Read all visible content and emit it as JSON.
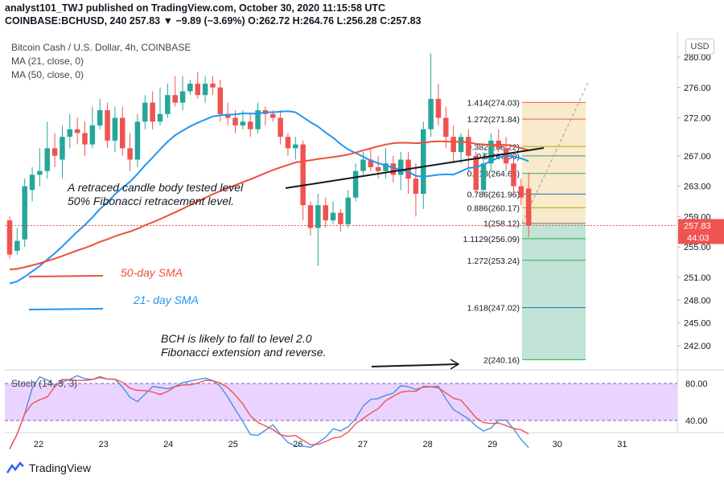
{
  "header": {
    "line1": "analyst101_TWJ published on TradingView.com, October 30, 2020 11:15:58 UTC",
    "line2": "COINBASE:BCHUSD, 240  257.83  ▼ −9.89 (−3.69%)  O:262.72  H:264.76  L:256.28  C:257.83"
  },
  "legend": {
    "title": "Bitcoin Cash / U.S. Dollar, 4h, COINBASE",
    "ma21": "MA (21, close, 0)",
    "ma50": "MA (50, close, 0)",
    "stoch": "Stoch (14, 3, 3)"
  },
  "currency_button": "USD",
  "annotations": {
    "retrace_1": "A retraced candle body tested level",
    "retrace_2": "50% Fibonacci retracement level.",
    "sma50": "50-day SMA",
    "sma21": "21- day SMA",
    "bch_1": "BCH is likely to fall to level 2.0",
    "bch_2": "Fibonacci extension and reverse."
  },
  "footer": {
    "brand": "TradingView"
  },
  "colors": {
    "up": "#26a69a",
    "down": "#ef5350",
    "ma21": "#2196f3",
    "ma50": "#ef4f3c",
    "stoch_k": "#4a90e2",
    "stoch_d": "#ef5350",
    "stoch_bg": "#e6ccff"
  },
  "chart_data": {
    "type": "candlestick",
    "x_ticks": [
      "22",
      "23",
      "24",
      "25",
      "26",
      "27",
      "28",
      "29",
      "30",
      "31"
    ],
    "y_ticks": [
      "280.00",
      "276.00",
      "272.00",
      "267.00",
      "263.00",
      "259.00",
      "255.00",
      "251.00",
      "248.00",
      "245.00",
      "242.00"
    ],
    "last_price": "257.83",
    "countdown": "44:03",
    "candles": [
      [
        258.5,
        254.0,
        259.0,
        253.5
      ],
      [
        254.5,
        255.8,
        257.5,
        254.0
      ],
      [
        256.0,
        263.0,
        264.0,
        255.0
      ],
      [
        262.5,
        264.5,
        265.5,
        261.0
      ],
      [
        264.5,
        265.0,
        268.0,
        263.0
      ],
      [
        265.0,
        268.0,
        271.5,
        264.0
      ],
      [
        268.0,
        267.0,
        270.0,
        265.5
      ],
      [
        266.5,
        269.5,
        271.0,
        264.0
      ],
      [
        269.5,
        270.5,
        272.5,
        268.0
      ],
      [
        270.5,
        270.0,
        272.0,
        268.5
      ],
      [
        270.0,
        268.5,
        271.5,
        267.0
      ],
      [
        268.5,
        271.0,
        273.5,
        268.0
      ],
      [
        271.0,
        273.0,
        274.5,
        270.5
      ],
      [
        273.0,
        269.0,
        274.0,
        268.0
      ],
      [
        269.0,
        272.0,
        273.5,
        267.5
      ],
      [
        272.0,
        268.0,
        273.5,
        267.0
      ],
      [
        268.0,
        266.5,
        270.0,
        265.0
      ],
      [
        266.5,
        271.5,
        272.5,
        265.5
      ],
      [
        271.5,
        274.0,
        275.0,
        270.5
      ],
      [
        274.0,
        271.5,
        275.5,
        270.5
      ],
      [
        271.5,
        272.5,
        276.0,
        271.0
      ],
      [
        272.5,
        275.0,
        276.5,
        272.0
      ],
      [
        275.0,
        274.0,
        277.5,
        273.5
      ],
      [
        274.0,
        275.5,
        277.5,
        273.0
      ],
      [
        275.5,
        276.5,
        277.0,
        275.0
      ],
      [
        276.5,
        275.0,
        278.0,
        274.5
      ],
      [
        275.0,
        276.5,
        277.5,
        274.0
      ],
      [
        276.5,
        276.0,
        277.5,
        275.0
      ],
      [
        276.0,
        272.5,
        277.0,
        271.5
      ],
      [
        272.5,
        272.0,
        274.0,
        271.0
      ],
      [
        272.0,
        271.0,
        273.0,
        270.0
      ],
      [
        271.0,
        271.5,
        273.0,
        270.5
      ],
      [
        271.5,
        270.5,
        272.5,
        269.5
      ],
      [
        270.5,
        273.0,
        274.0,
        270.0
      ],
      [
        273.0,
        272.5,
        273.5,
        271.0
      ],
      [
        272.5,
        272.0,
        273.0,
        271.5
      ],
      [
        272.0,
        269.5,
        273.0,
        268.5
      ],
      [
        269.5,
        268.0,
        270.0,
        267.0
      ],
      [
        268.0,
        268.5,
        269.5,
        266.5
      ],
      [
        268.5,
        260.5,
        269.0,
        258.5
      ],
      [
        260.5,
        257.5,
        261.0,
        256.5
      ],
      [
        257.5,
        260.5,
        262.0,
        252.5
      ],
      [
        260.5,
        258.5,
        261.5,
        257.5
      ],
      [
        258.5,
        259.5,
        261.0,
        258.0
      ],
      [
        259.5,
        258.0,
        260.0,
        257.0
      ],
      [
        258.0,
        261.5,
        262.5,
        257.5
      ],
      [
        261.5,
        265.0,
        266.0,
        261.0
      ],
      [
        265.0,
        266.5,
        267.5,
        264.5
      ],
      [
        266.5,
        265.5,
        268.0,
        265.0
      ],
      [
        265.5,
        265.0,
        267.0,
        264.0
      ],
      [
        265.0,
        266.0,
        268.0,
        264.0
      ],
      [
        266.0,
        264.5,
        267.0,
        263.5
      ],
      [
        264.5,
        266.5,
        267.5,
        262.5
      ],
      [
        266.5,
        264.0,
        267.5,
        262.0
      ],
      [
        264.0,
        262.0,
        266.0,
        259.0
      ],
      [
        262.0,
        270.5,
        271.5,
        260.0
      ],
      [
        270.5,
        274.5,
        280.5,
        269.5
      ],
      [
        274.5,
        272.0,
        276.5,
        271.0
      ],
      [
        272.0,
        269.5,
        273.5,
        268.0
      ],
      [
        269.5,
        267.5,
        271.0,
        266.0
      ],
      [
        267.5,
        269.5,
        270.0,
        266.0
      ],
      [
        269.5,
        267.0,
        270.5,
        265.0
      ],
      [
        267.0,
        262.5,
        267.5,
        262.0
      ],
      [
        262.5,
        266.0,
        267.5,
        262.0
      ],
      [
        266.0,
        269.0,
        270.0,
        265.0
      ],
      [
        269.0,
        268.0,
        270.5,
        267.5
      ],
      [
        268.0,
        266.0,
        269.5,
        265.0
      ],
      [
        266.0,
        263.0,
        267.0,
        262.0
      ],
      [
        263.0,
        261.5,
        264.0,
        260.5
      ],
      [
        262.7,
        257.8,
        264.8,
        256.3
      ]
    ],
    "fib_levels": [
      {
        "label": "1.414(274.03)",
        "value": 274.03
      },
      {
        "label": "1.272(271.84)",
        "value": 271.84
      },
      {
        "label": "0.382(268.22)",
        "value": 268.22
      },
      {
        "label": "0.5(267.00)",
        "value": 267.0
      },
      {
        "label": "0.618(264.68)",
        "value": 264.68
      },
      {
        "label": "0.786(261.96)",
        "value": 261.96
      },
      {
        "label": "0.886(260.17)",
        "value": 260.17
      },
      {
        "label": "1(258.12)",
        "value": 258.12
      },
      {
        "label": "1.1129(256.09)",
        "value": 256.09
      },
      {
        "label": "1.272(253.24)",
        "value": 253.24
      },
      {
        "label": "1.618(247.02)",
        "value": 247.02
      },
      {
        "label": "2(240.16)",
        "value": 240.16
      }
    ],
    "stoch_ticks": [
      "80.00",
      "40.00"
    ]
  }
}
